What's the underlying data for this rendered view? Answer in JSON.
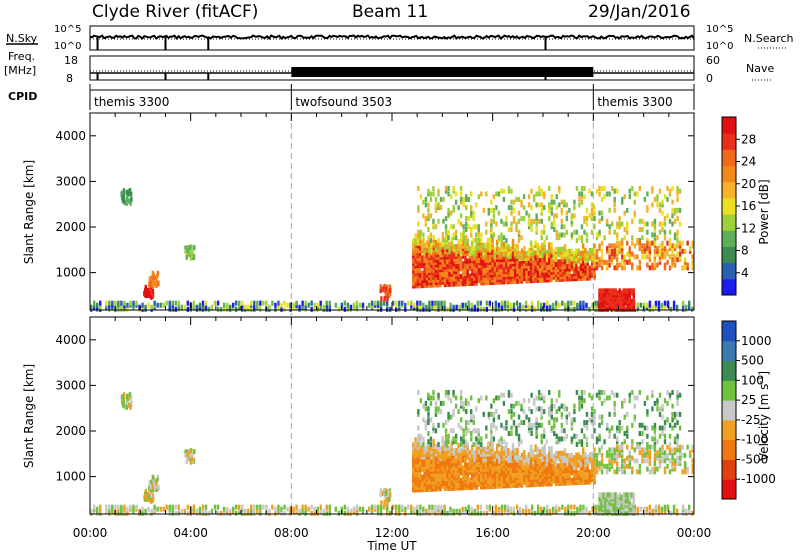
{
  "header": {
    "title_left": "Clyde River (fitACF)",
    "title_center": "Beam 11",
    "title_right": "29/Jan/2016"
  },
  "top_panels": {
    "nsky_label": "N.Sky",
    "nsearch_label": "N.Search",
    "nsky_ticks": [
      "10^5",
      "10^0"
    ],
    "nsearch_ticks": [
      "10^5",
      "10^0"
    ],
    "freq_label_1": "Freq.",
    "freq_label_2": "[MHz]",
    "freq_ticks": [
      "18",
      "8"
    ],
    "nave_label": "Nave",
    "nave_ticks": [
      "60",
      "0"
    ],
    "cpid_label": "CPID",
    "cpid_segments": [
      {
        "label": "themis 3300",
        "start_h": 0,
        "end_h": 8
      },
      {
        "label": "twofsound 3503",
        "start_h": 8,
        "end_h": 20
      },
      {
        "label": "themis 3300",
        "start_h": 20,
        "end_h": 24
      }
    ]
  },
  "axes": {
    "ylabel": "Slant Range [km]",
    "xlabel": "Time UT",
    "y_ticks": [
      "1000",
      "2000",
      "3000",
      "4000"
    ],
    "x_ticks": [
      "00:00",
      "04:00",
      "08:00",
      "12:00",
      "16:00",
      "20:00",
      "00:00"
    ]
  },
  "colorbars": {
    "power": {
      "label": "Power [dB]",
      "ticks": [
        "4",
        "8",
        "12",
        "16",
        "20",
        "24",
        "28"
      ],
      "colors": [
        "#1c1cf0",
        "#2a5fb0",
        "#3a8a52",
        "#5fae5a",
        "#9ed03a",
        "#e8e020",
        "#f5b22a",
        "#f28a1a",
        "#f06a1a",
        "#e8301a",
        "#e01010"
      ]
    },
    "velocity": {
      "label": "Velocity",
      "unit": "[m s",
      "unit_sup": "-1",
      "unit_close": "]",
      "ticks": [
        "1000",
        "500",
        "100",
        "25",
        "-25",
        "-100",
        "-500",
        "-1000"
      ],
      "colors": [
        "#2050c0",
        "#3a7ab0",
        "#3a8a52",
        "#70c040",
        "#c8c8c8",
        "#f0a020",
        "#f07810",
        "#e04010",
        "#e01010"
      ]
    }
  },
  "chart_data": {
    "type": "heatmap",
    "x_range_hours": [
      0,
      24
    ],
    "y_range_km": [
      180,
      4500
    ],
    "mode_changes_h": [
      8,
      20
    ],
    "panels": [
      "Power [dB]",
      "Velocity"
    ],
    "notes_regions": [
      {
        "t0": 12.8,
        "t1": 20.0,
        "r0": 600,
        "r1": 1800,
        "power_db": 26,
        "velocity": -250
      },
      {
        "t0": 20.2,
        "t1": 21.6,
        "r0": 180,
        "r1": 650,
        "power_db": 29,
        "velocity": 0
      },
      {
        "t0": 0.0,
        "t1": 24.0,
        "r0": 180,
        "r1": 350,
        "power_db": 10,
        "velocity": 50
      }
    ]
  }
}
